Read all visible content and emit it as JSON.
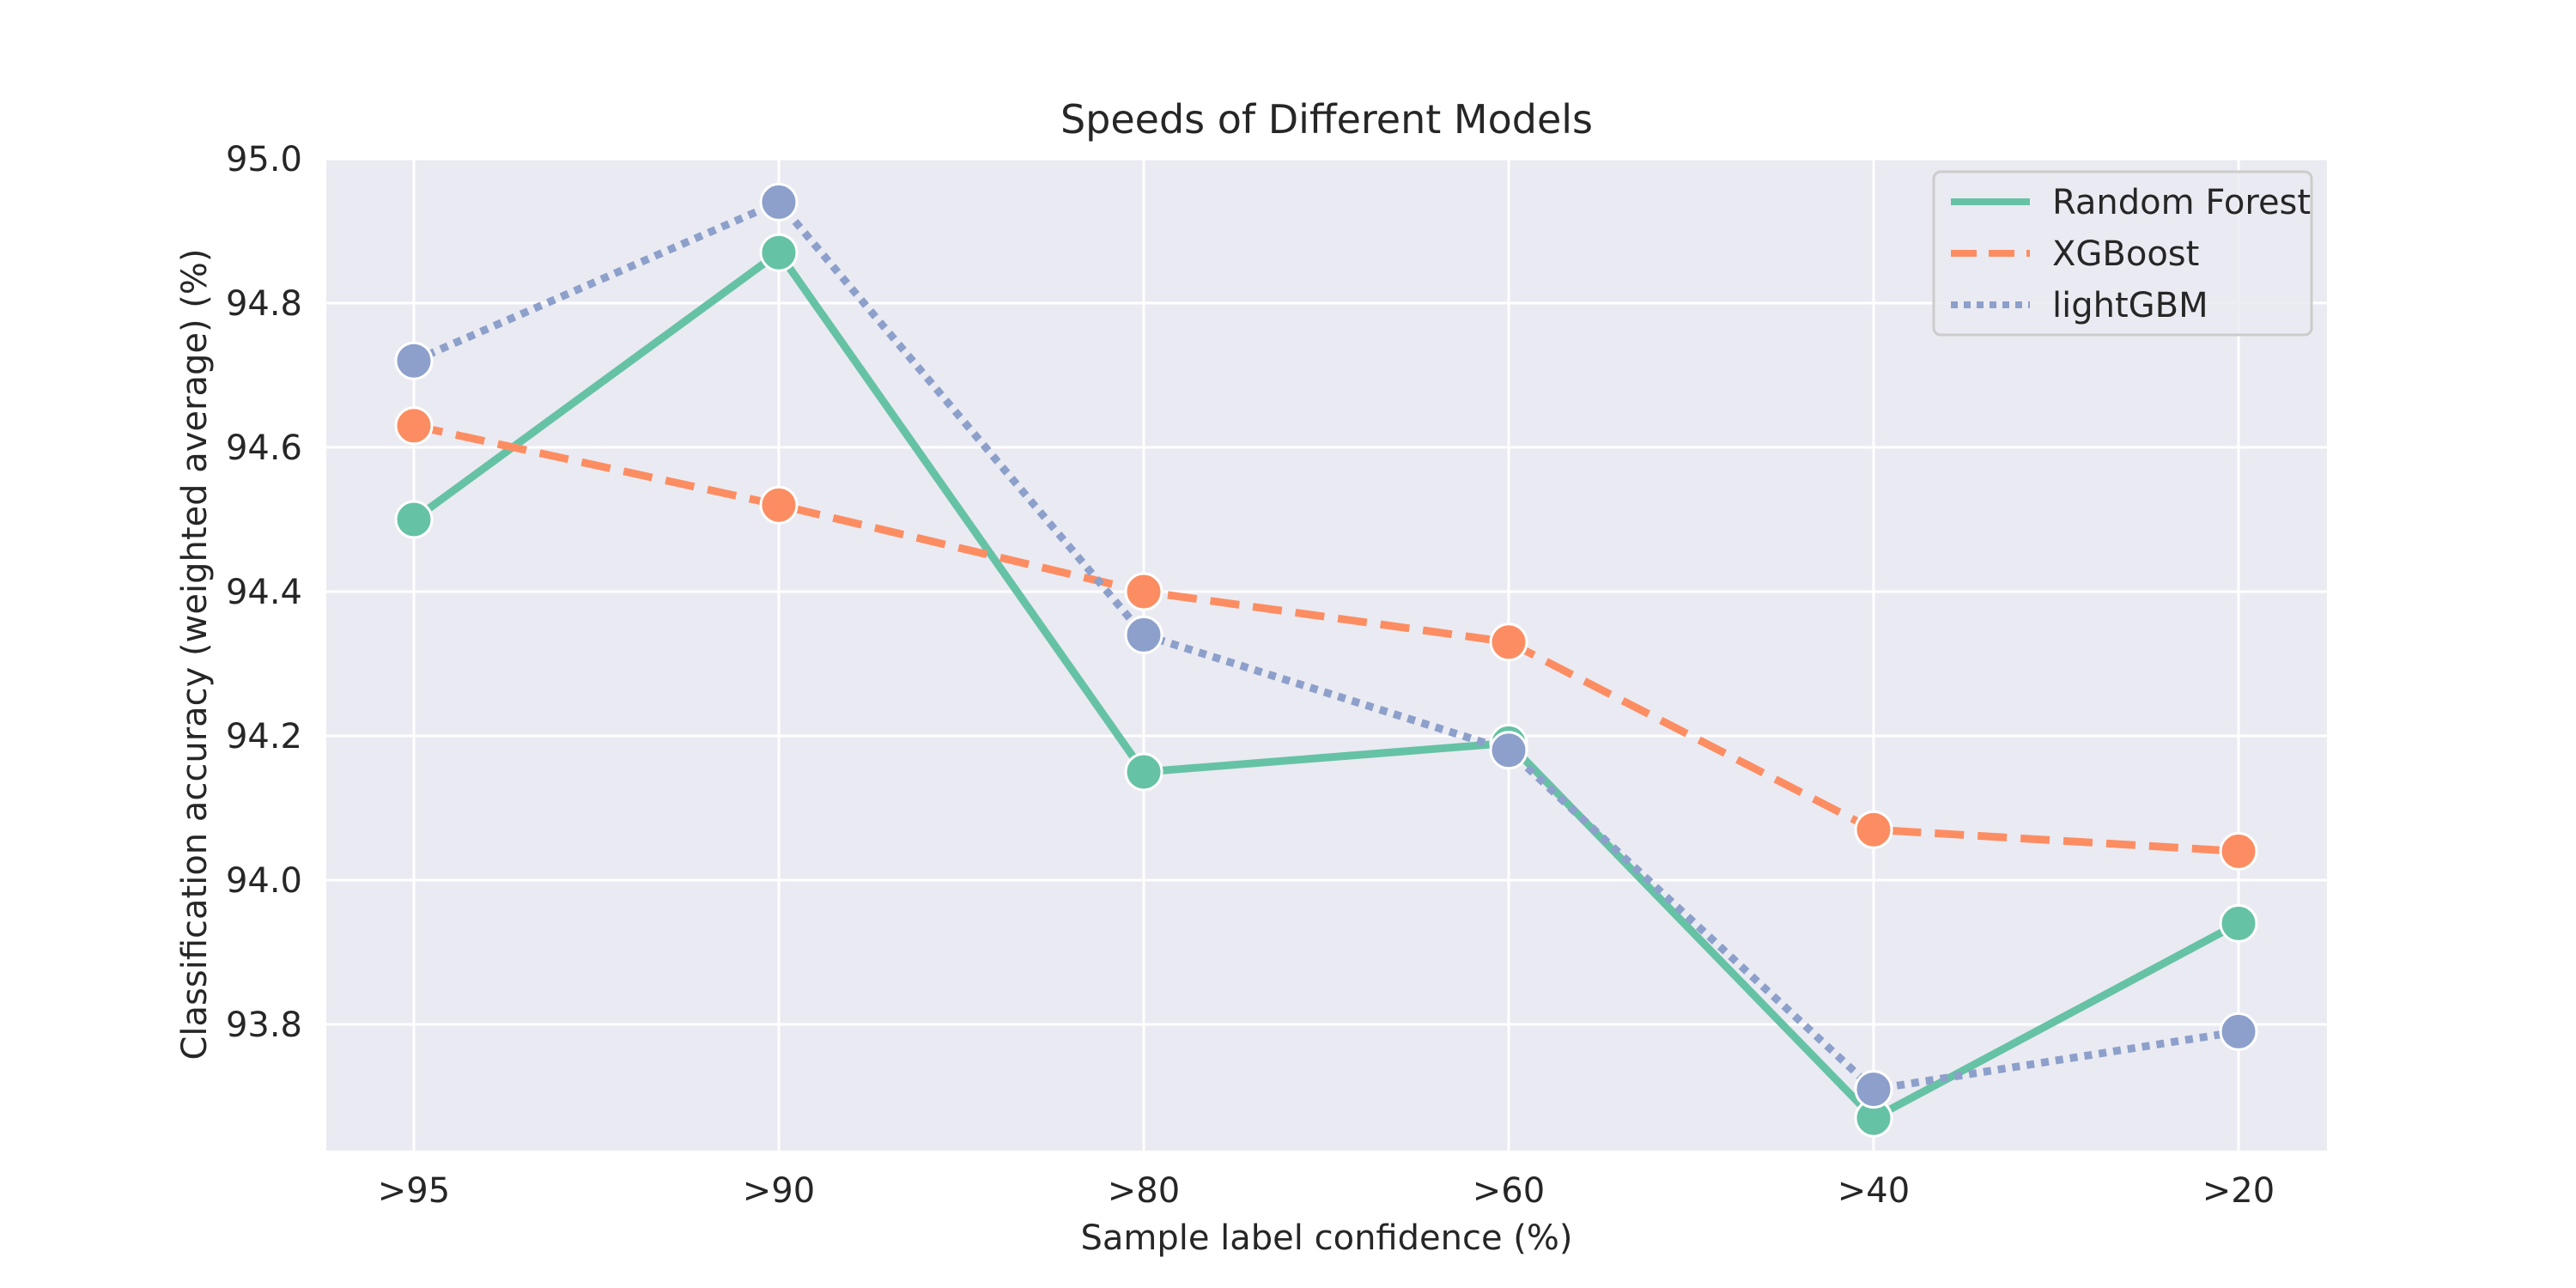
{
  "chart_data": {
    "type": "line",
    "title": "Speeds of Different Models",
    "xlabel": "Sample label confidence (%)",
    "ylabel": "Classification accuracy (weighted average) (%)",
    "categories": [
      ">95",
      ">90",
      ">80",
      ">60",
      ">40",
      ">20"
    ],
    "ylim": [
      93.625,
      95.0
    ],
    "yticks": [
      93.8,
      94.0,
      94.2,
      94.4,
      94.6,
      94.8,
      95.0
    ],
    "grid": true,
    "legend": "top-right",
    "series": [
      {
        "name": "Random Forest",
        "values": [
          94.5,
          94.87,
          94.15,
          94.19,
          93.67,
          93.94
        ],
        "color": "#66c2a5",
        "dash": "solid"
      },
      {
        "name": "XGBoost",
        "values": [
          94.63,
          94.52,
          94.4,
          94.33,
          94.07,
          94.04
        ],
        "color": "#fc8d62",
        "dash": "dashed"
      },
      {
        "name": "lightGBM",
        "values": [
          94.72,
          94.94,
          94.34,
          94.18,
          93.71,
          93.79
        ],
        "color": "#8da0cb",
        "dash": "dotted"
      }
    ]
  }
}
